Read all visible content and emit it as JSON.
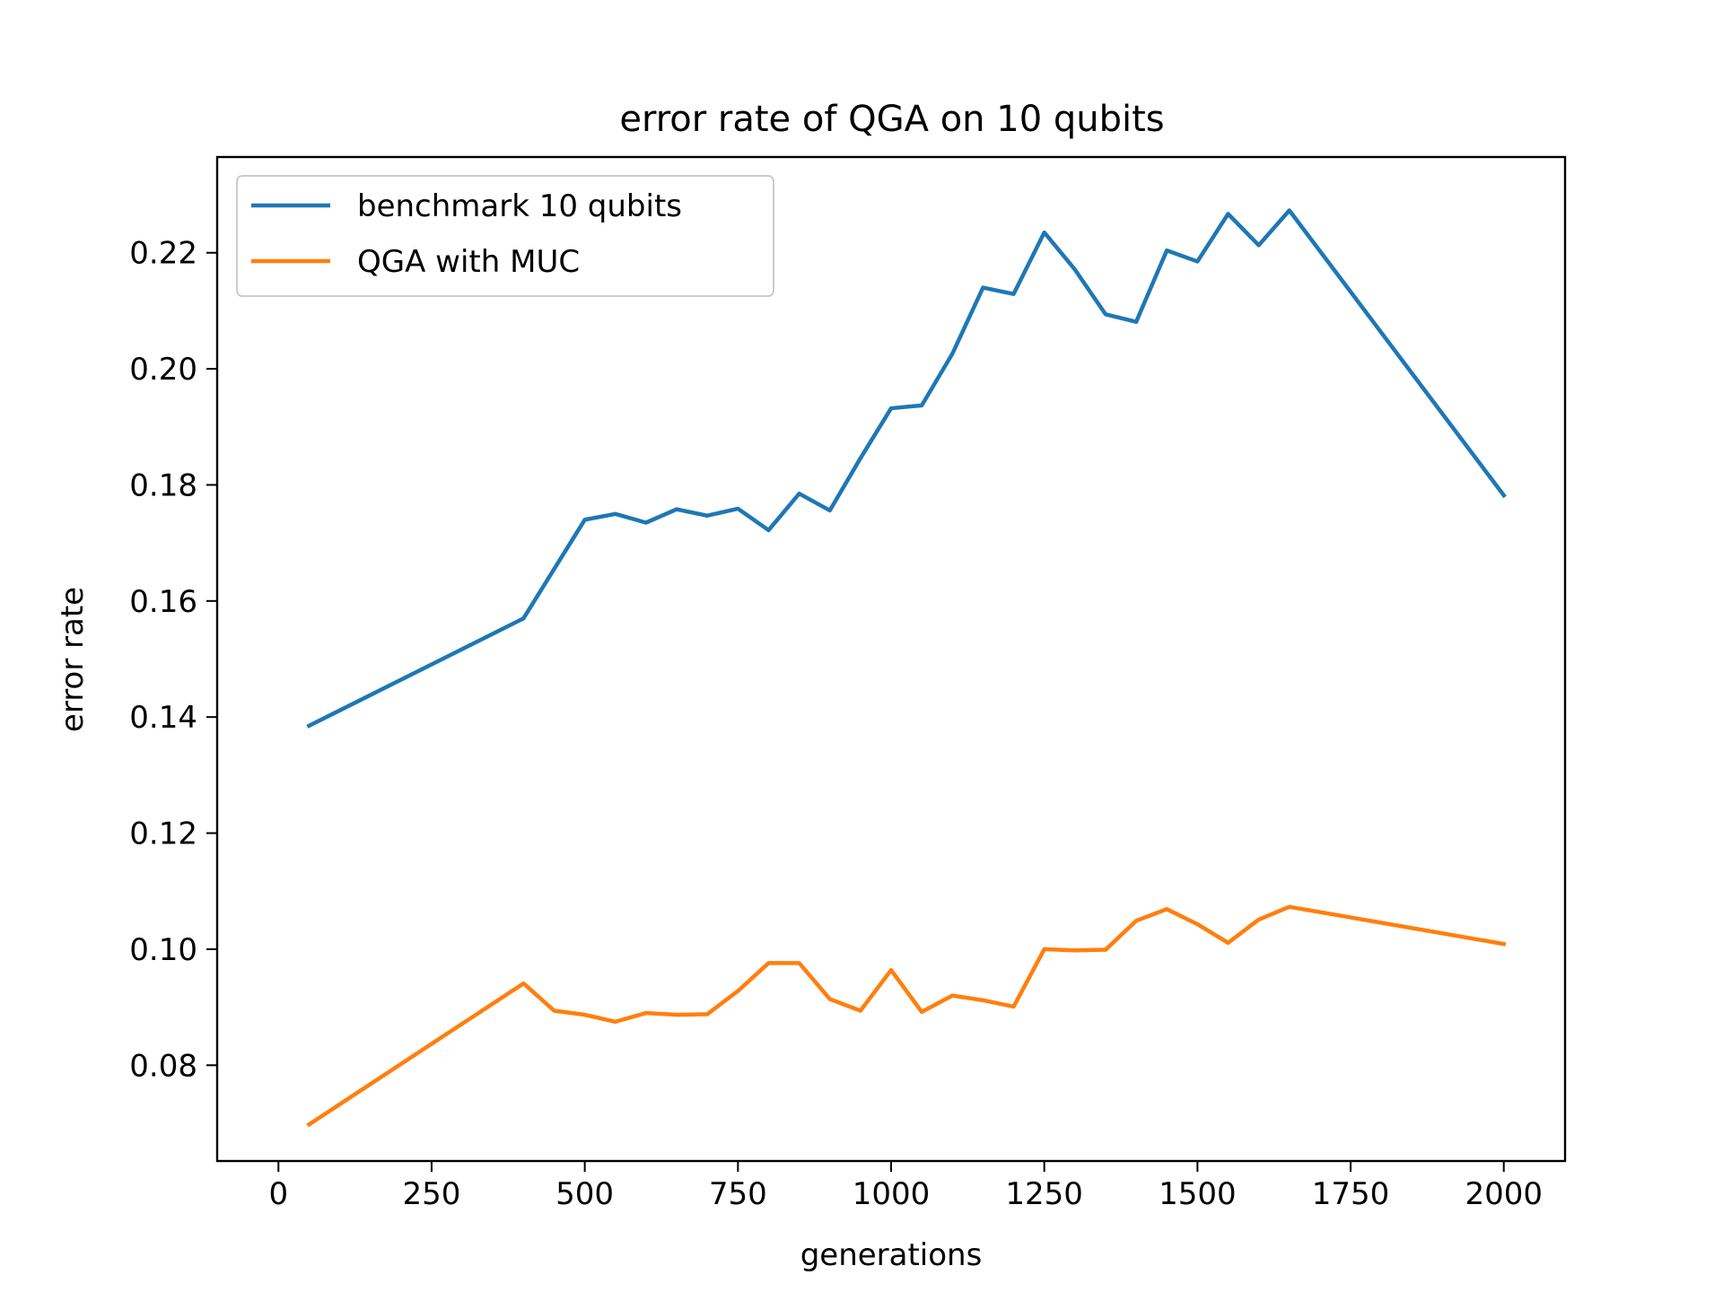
{
  "chart_data": {
    "type": "line",
    "title": "error rate of QGA on 10 qubits",
    "xlabel": "generations",
    "ylabel": "error rate",
    "xlim": [
      -100,
      2100
    ],
    "ylim": [
      0.0635,
      0.2365
    ],
    "xticks": [
      0,
      250,
      500,
      750,
      1000,
      1250,
      1500,
      1750,
      2000
    ],
    "xtick_labels": [
      "0",
      "250",
      "500",
      "750",
      "1000",
      "1250",
      "1500",
      "1750",
      "2000"
    ],
    "yticks": [
      0.08,
      0.1,
      0.12,
      0.14,
      0.16,
      0.18,
      0.2,
      0.22
    ],
    "ytick_labels": [
      "0.08",
      "0.10",
      "0.12",
      "0.14",
      "0.16",
      "0.18",
      "0.20",
      "0.22"
    ],
    "grid": false,
    "legend_position": "top-left",
    "series": [
      {
        "name": "benchmark 10 qubits",
        "color": "#1f77b4",
        "x": [
          50,
          400,
          450,
          500,
          550,
          600,
          650,
          700,
          750,
          800,
          850,
          900,
          950,
          1000,
          1050,
          1100,
          1150,
          1200,
          1250,
          1300,
          1350,
          1400,
          1450,
          1500,
          1550,
          1600,
          1650,
          2000
        ],
        "y": [
          0.1385,
          0.157,
          0.1655,
          0.174,
          0.175,
          0.1735,
          0.1758,
          0.1747,
          0.1759,
          0.1722,
          0.1785,
          0.1756,
          0.1846,
          0.1932,
          0.1937,
          0.2026,
          0.214,
          0.2129,
          0.2235,
          0.2171,
          0.2094,
          0.2081,
          0.2204,
          0.2185,
          0.2267,
          0.2213,
          0.2273,
          0.1782
        ]
      },
      {
        "name": "QGA with MUC",
        "color": "#ff7f0e",
        "x": [
          50,
          400,
          450,
          500,
          550,
          600,
          650,
          700,
          750,
          800,
          850,
          900,
          950,
          1000,
          1050,
          1100,
          1150,
          1200,
          1250,
          1300,
          1350,
          1400,
          1450,
          1500,
          1550,
          1600,
          1650,
          2000
        ],
        "y": [
          0.0698,
          0.0941,
          0.0894,
          0.0887,
          0.0875,
          0.089,
          0.0887,
          0.0888,
          0.0928,
          0.0976,
          0.0976,
          0.0914,
          0.0894,
          0.0964,
          0.0892,
          0.092,
          0.0912,
          0.0901,
          0.1,
          0.0998,
          0.0999,
          0.1049,
          0.1069,
          0.1043,
          0.1011,
          0.1051,
          0.1073,
          0.1009
        ]
      }
    ]
  }
}
